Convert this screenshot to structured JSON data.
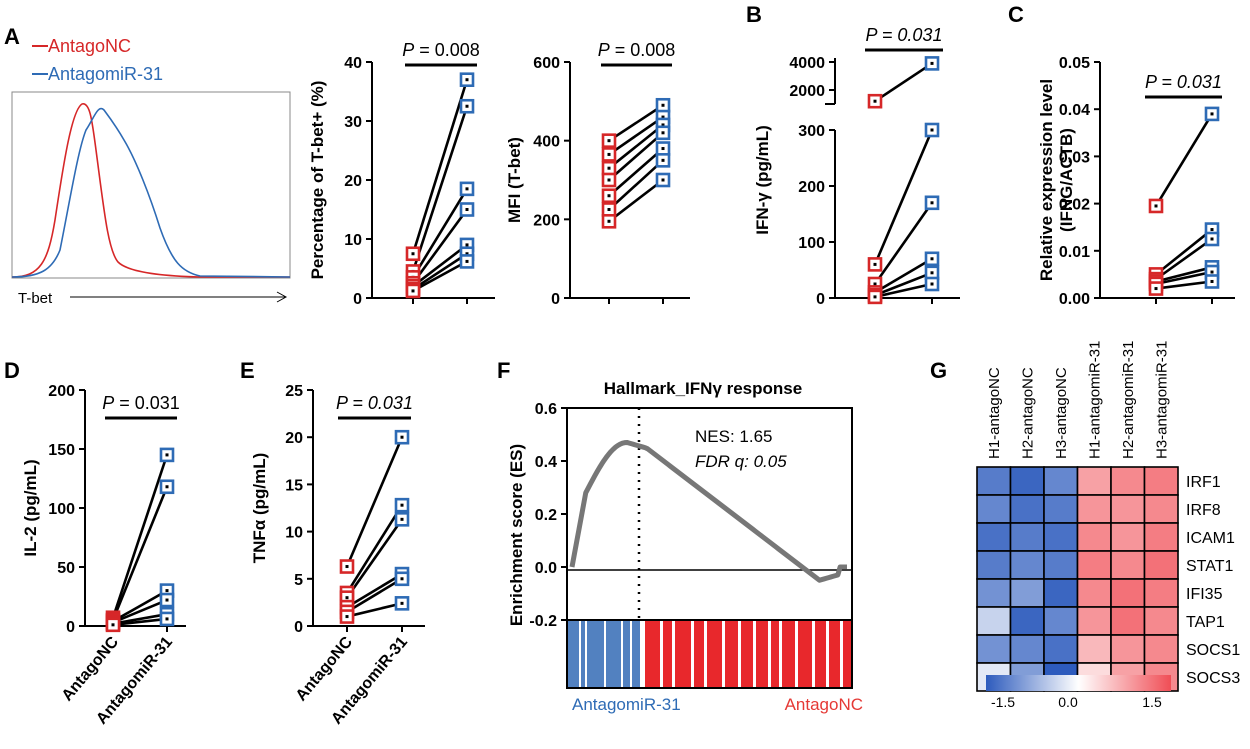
{
  "colors": {
    "nc": "#d62728",
    "mir": "#2e6bb5",
    "pair": "#000000",
    "es": "#777777"
  },
  "chart_data": [
    {
      "id": "A_histogram",
      "type": "line",
      "panel": "A",
      "legend": [
        "AntagoNC",
        "AntagomiR-31"
      ],
      "xlabel": "T-bet"
    },
    {
      "id": "A_pct",
      "type": "scatter",
      "panel": "A",
      "ylabel": "Percentage of T-bet+ (%)",
      "ylim": [
        0,
        40
      ],
      "yticks": [
        0,
        10,
        20,
        30,
        40
      ],
      "pvalue": "P = 0.008",
      "pairs": [
        [
          7.5,
          37
        ],
        [
          4.5,
          32.5
        ],
        [
          3.5,
          18.5
        ],
        [
          2.5,
          15
        ],
        [
          2,
          9
        ],
        [
          1.5,
          7.5
        ],
        [
          1.2,
          6.2
        ]
      ]
    },
    {
      "id": "A_mfi",
      "type": "scatter",
      "panel": "A",
      "ylabel": "MFI (T-bet)",
      "ylim": [
        0,
        600
      ],
      "yticks": [
        0,
        200,
        400,
        600
      ],
      "pvalue": "P = 0.008",
      "pairs": [
        [
          400,
          490
        ],
        [
          365,
          460
        ],
        [
          330,
          440
        ],
        [
          300,
          420
        ],
        [
          260,
          380
        ],
        [
          225,
          350
        ],
        [
          195,
          300
        ]
      ]
    },
    {
      "id": "B_ifng",
      "type": "scatter",
      "panel": "B",
      "ylabel": "IFN-γ (pg/mL)",
      "ylim": [
        0,
        300
      ],
      "yticks": [
        0,
        100,
        200,
        300
      ],
      "upper_ticks": [
        "2000",
        "4000"
      ],
      "pvalue": "P = 0.031",
      "pairs": [
        [
          1200,
          3900
        ],
        [
          60,
          300
        ],
        [
          25,
          170
        ],
        [
          10,
          70
        ],
        [
          5,
          45
        ],
        [
          2,
          25
        ]
      ]
    },
    {
      "id": "C_rel",
      "type": "scatter",
      "panel": "C",
      "ylabel": "Relative expression level",
      "ylabel2": "(IFNG/ACTB)",
      "ylim": [
        0,
        0.05
      ],
      "yticks": [
        "0.00",
        "0.01",
        "0.02",
        "0.03",
        "0.04",
        "0.05"
      ],
      "pvalue": "P = 0.031",
      "pairs": [
        [
          0.0195,
          0.039
        ],
        [
          0.005,
          0.0145
        ],
        [
          0.004,
          0.0125
        ],
        [
          0.0035,
          0.0065
        ],
        [
          0.003,
          0.0055
        ],
        [
          0.002,
          0.0035
        ]
      ]
    },
    {
      "id": "D_il2",
      "type": "scatter",
      "panel": "D",
      "ylabel": "IL-2 (pg/mL)",
      "ylim": [
        0,
        200
      ],
      "yticks": [
        0,
        50,
        100,
        150,
        200
      ],
      "categories": [
        "AntagoNC",
        "AntagomiR-31"
      ],
      "pvalue": "P = 0.031",
      "pairs": [
        [
          7,
          145
        ],
        [
          5,
          118
        ],
        [
          4,
          30
        ],
        [
          3,
          22
        ],
        [
          2,
          10
        ],
        [
          1,
          6
        ]
      ]
    },
    {
      "id": "E_tnf",
      "type": "scatter",
      "panel": "E",
      "ylabel": "TNFα (pg/mL)",
      "ylim": [
        0,
        25
      ],
      "yticks": [
        0,
        5,
        10,
        15,
        20,
        25
      ],
      "categories": [
        "AntagoNC",
        "AntagomiR-31"
      ],
      "pvalue": "P = 0.031",
      "pairs": [
        [
          6.3,
          20
        ],
        [
          3.5,
          12.8
        ],
        [
          3,
          11.3
        ],
        [
          2,
          5.5
        ],
        [
          1.5,
          5
        ],
        [
          1,
          2.4
        ]
      ]
    },
    {
      "id": "F_gsea",
      "type": "line",
      "panel": "F",
      "title": "Hallmark_IFNγ response",
      "ylabel": "Enrichment score (ES)",
      "ylim": [
        -0.2,
        0.6
      ],
      "yticks": [
        "-0.2",
        "0.0",
        "0.2",
        "0.4",
        "0.6"
      ],
      "nes": "NES: 1.65",
      "fdr_label": "FDR q:",
      "fdr_value": "0.05",
      "left_label": "AntagomiR-31",
      "right_label": "AntagoNC"
    },
    {
      "id": "G_heatmap",
      "type": "heatmap",
      "panel": "G",
      "columns": [
        "H1-antagoNC",
        "H2-antagoNC",
        "H3-antagoNC",
        "H1-antagomiR-31",
        "H2-antagomiR-31",
        "H3-antagomiR-31"
      ],
      "rows": [
        "IRF1",
        "IRF8",
        "ICAM1",
        "STAT1",
        "IFI35",
        "TAP1",
        "SOCS1",
        "SOCS3"
      ],
      "values": [
        [
          -1.2,
          -1.4,
          -1.1,
          0.8,
          1.0,
          1.1
        ],
        [
          -1.1,
          -1.3,
          -1.2,
          0.9,
          0.9,
          1.0
        ],
        [
          -1.3,
          -1.2,
          -1.3,
          1.0,
          0.9,
          1.1
        ],
        [
          -1.2,
          -1.1,
          -1.2,
          1.1,
          1.0,
          1.2
        ],
        [
          -1.0,
          -0.9,
          -1.4,
          1.0,
          1.2,
          1.1
        ],
        [
          -0.4,
          -1.4,
          -1.1,
          0.9,
          1.2,
          1.0
        ],
        [
          -1.0,
          -1.1,
          -1.3,
          0.6,
          0.9,
          1.0
        ],
        [
          -0.2,
          -0.9,
          -1.5,
          0.3,
          0.8,
          1.0
        ]
      ],
      "colorbar_ticks": [
        "-1.5",
        "0.0",
        "1.5"
      ],
      "vmin": -1.5,
      "vmax": 1.5
    }
  ],
  "panels": {
    "A": "A",
    "B": "B",
    "C": "C",
    "D": "D",
    "E": "E",
    "F": "F",
    "G": "G"
  }
}
